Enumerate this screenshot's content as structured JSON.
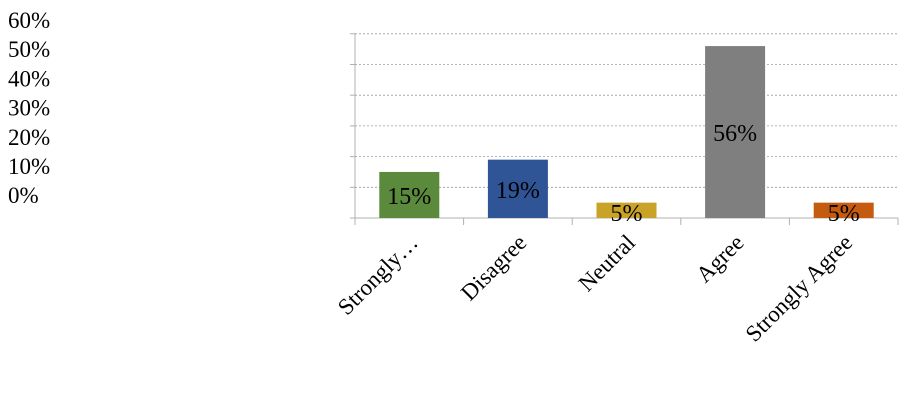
{
  "chart_data": {
    "type": "bar",
    "title": "",
    "xlabel": "",
    "ylabel": "",
    "ylim": [
      0,
      60
    ],
    "y_ticks": [
      "60%",
      "50%",
      "40%",
      "30%",
      "20%",
      "10%",
      "0%"
    ],
    "grid": true,
    "legend": "none",
    "categories": [
      "Strongly…",
      "Disagree",
      "Neutral",
      "Agree",
      "Strongly Agree"
    ],
    "values": [
      15,
      19,
      5,
      56,
      5
    ],
    "data_labels": [
      "15%",
      "19%",
      "5%",
      "56%",
      "5%"
    ],
    "colors": [
      "#5b8a3c",
      "#2f5597",
      "#c9a227",
      "#7f7f7f",
      "#c55a11"
    ]
  }
}
